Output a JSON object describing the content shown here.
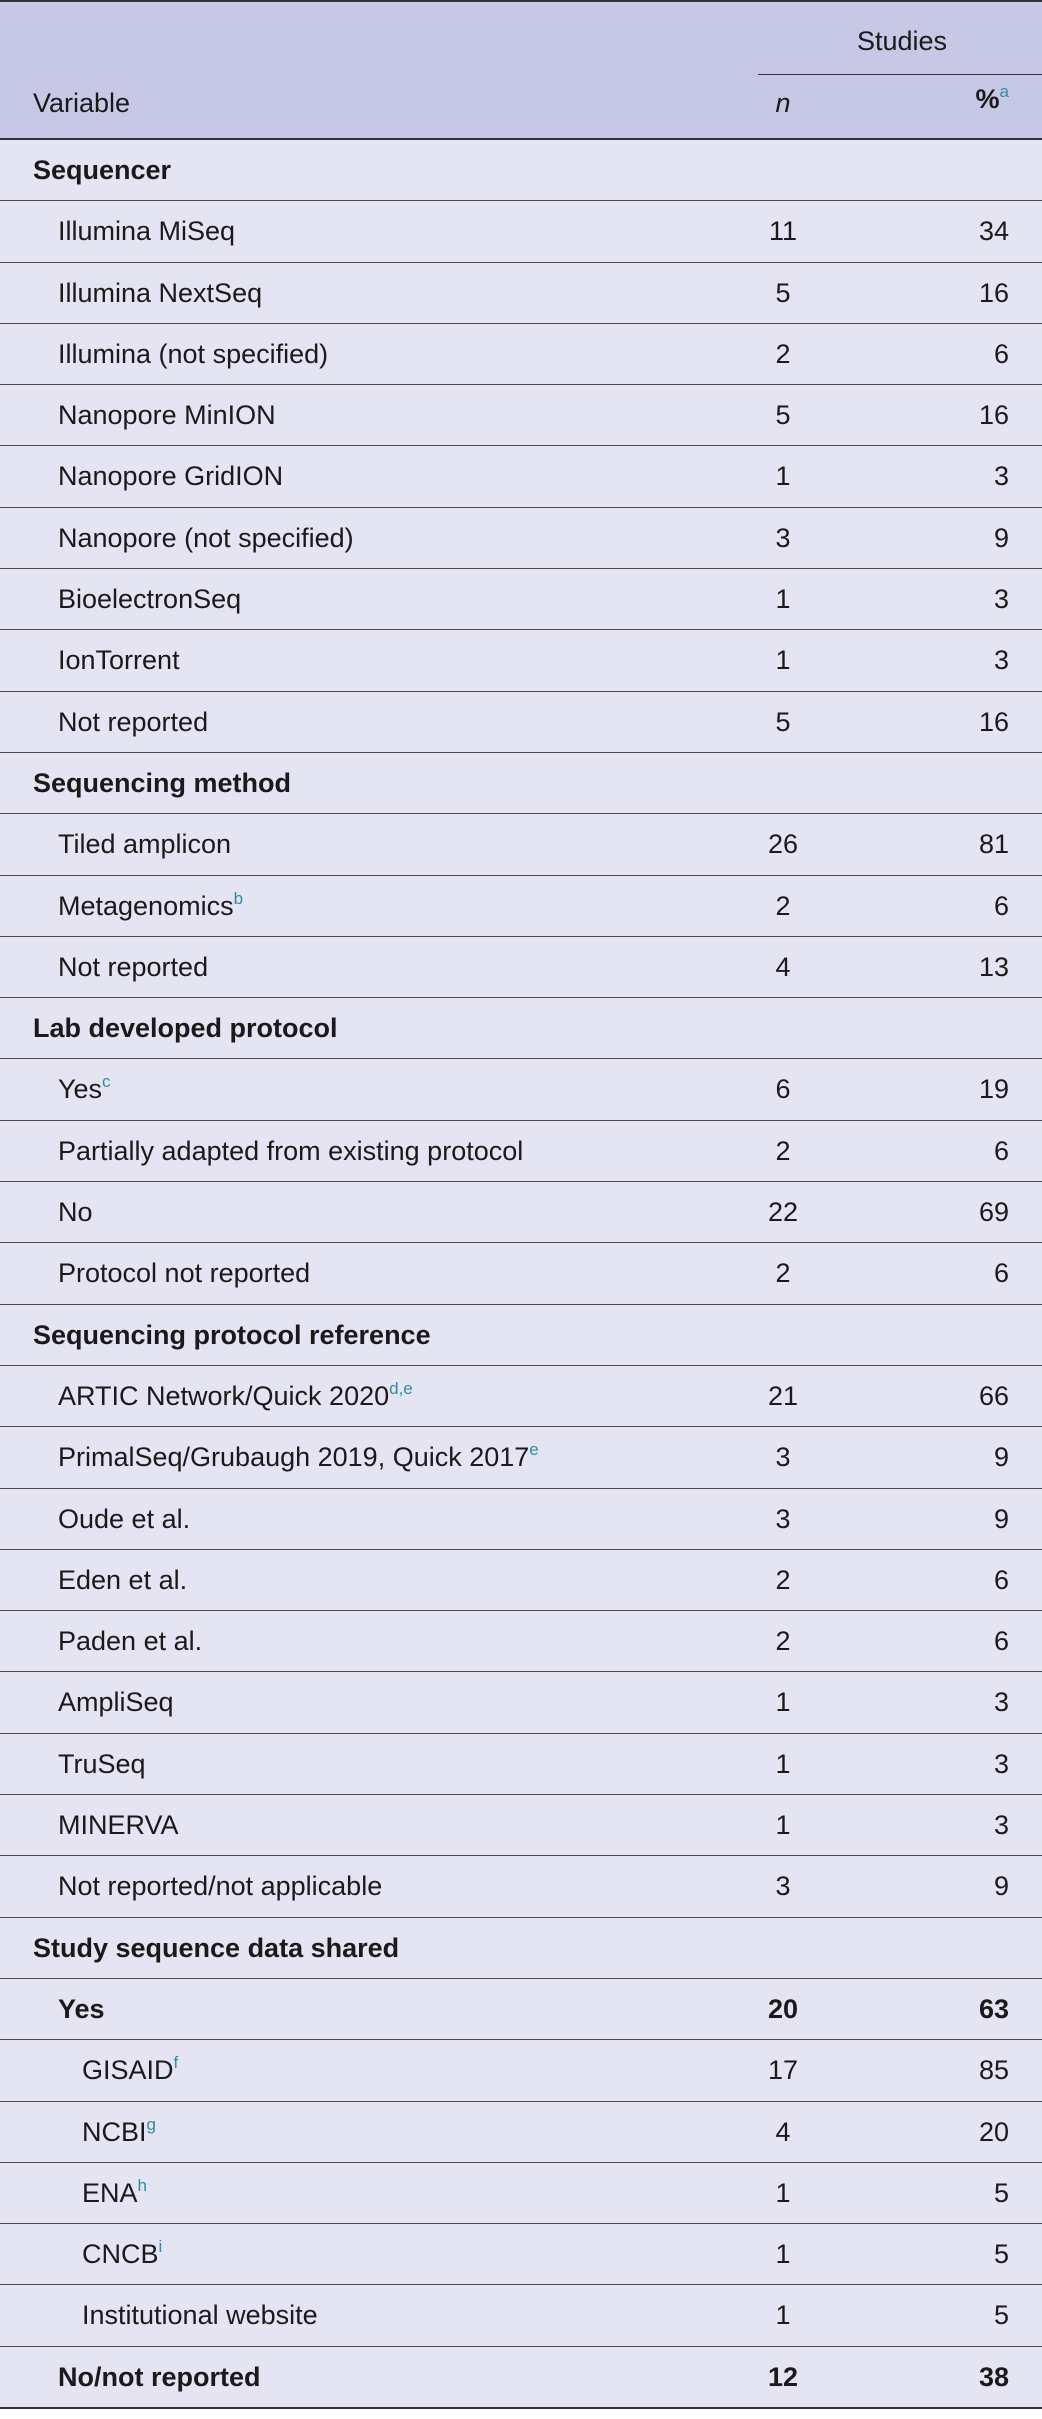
{
  "header": {
    "studies": "Studies",
    "variable": "Variable",
    "n": "n",
    "pct": "%",
    "pct_note": "a"
  },
  "rows": [
    {
      "type": "section",
      "label": "Sequencer"
    },
    {
      "type": "item",
      "label": "Illumina MiSeq",
      "n": "11",
      "pct": "34"
    },
    {
      "type": "item",
      "label": "Illumina NextSeq",
      "n": "5",
      "pct": "16"
    },
    {
      "type": "item",
      "label": "Illumina (not specified)",
      "n": "2",
      "pct": "6"
    },
    {
      "type": "item",
      "label": "Nanopore MinION",
      "n": "5",
      "pct": "16"
    },
    {
      "type": "item",
      "label": "Nanopore GridION",
      "n": "1",
      "pct": "3"
    },
    {
      "type": "item",
      "label": "Nanopore (not specified)",
      "n": "3",
      "pct": "9"
    },
    {
      "type": "item",
      "label": "BioelectronSeq",
      "n": "1",
      "pct": "3"
    },
    {
      "type": "item",
      "label": "IonTorrent",
      "n": "1",
      "pct": "3"
    },
    {
      "type": "item",
      "label": "Not reported",
      "n": "5",
      "pct": "16"
    },
    {
      "type": "section",
      "label": "Sequencing method"
    },
    {
      "type": "item",
      "label": "Tiled amplicon",
      "n": "26",
      "pct": "81"
    },
    {
      "type": "item",
      "label": "Metagenomics",
      "note": "b",
      "n": "2",
      "pct": "6"
    },
    {
      "type": "item",
      "label": "Not reported",
      "n": "4",
      "pct": "13"
    },
    {
      "type": "section",
      "label": "Lab developed protocol"
    },
    {
      "type": "item",
      "label": "Yes",
      "note": "c",
      "n": "6",
      "pct": "19"
    },
    {
      "type": "item",
      "label": "Partially adapted from existing protocol",
      "n": "2",
      "pct": "6"
    },
    {
      "type": "item",
      "label": "No",
      "n": "22",
      "pct": "69"
    },
    {
      "type": "item",
      "label": "Protocol not reported",
      "n": "2",
      "pct": "6"
    },
    {
      "type": "section",
      "label": "Sequencing protocol reference"
    },
    {
      "type": "item",
      "label": "ARTIC Network/Quick 2020",
      "note": "d,e",
      "n": "21",
      "pct": "66"
    },
    {
      "type": "item",
      "label": "PrimalSeq/Grubaugh 2019, Quick 2017",
      "note": "e",
      "n": "3",
      "pct": "9"
    },
    {
      "type": "item",
      "label": "Oude et al.",
      "n": "3",
      "pct": "9"
    },
    {
      "type": "item",
      "label": "Eden et al.",
      "n": "2",
      "pct": "6"
    },
    {
      "type": "item",
      "label": "Paden et al.",
      "n": "2",
      "pct": "6"
    },
    {
      "type": "item",
      "label": "AmpliSeq",
      "n": "1",
      "pct": "3"
    },
    {
      "type": "item",
      "label": "TruSeq",
      "n": "1",
      "pct": "3"
    },
    {
      "type": "item",
      "label": "MINERVA",
      "n": "1",
      "pct": "3"
    },
    {
      "type": "item",
      "label": "Not reported/not applicable",
      "n": "3",
      "pct": "9"
    },
    {
      "type": "section",
      "label": "Study sequence data shared"
    },
    {
      "type": "bold",
      "label": "Yes",
      "n": "20",
      "pct": "63"
    },
    {
      "type": "sub",
      "label": "GISAID",
      "note": "f",
      "n": "17",
      "pct": "85"
    },
    {
      "type": "sub",
      "label": "NCBI",
      "note": "g",
      "n": "4",
      "pct": "20"
    },
    {
      "type": "sub",
      "label": "ENA",
      "note": "h",
      "n": "1",
      "pct": "5"
    },
    {
      "type": "sub",
      "label": "CNCB",
      "note": "i",
      "n": "1",
      "pct": "5"
    },
    {
      "type": "sub",
      "label": "Institutional website",
      "n": "1",
      "pct": "5"
    },
    {
      "type": "bold",
      "label": "No/not reported",
      "n": "12",
      "pct": "38"
    }
  ]
}
